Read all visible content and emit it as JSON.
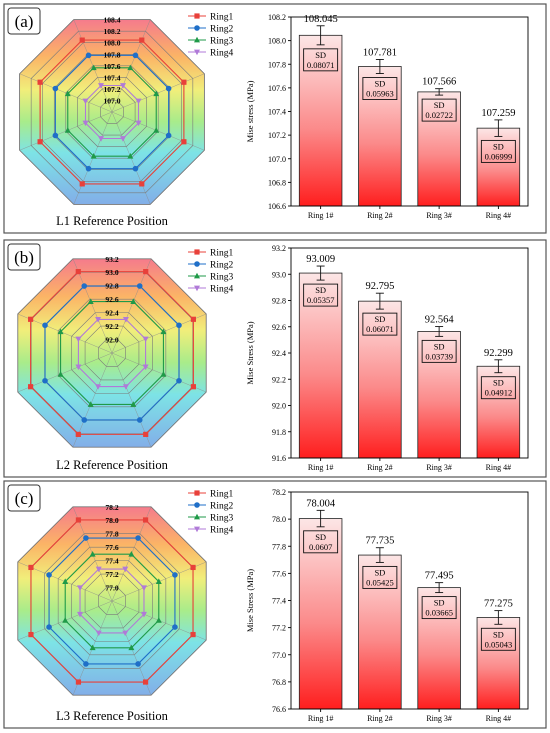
{
  "colors": {
    "ring1": "#e8403a",
    "ring2": "#1f6fc8",
    "ring3": "#1f9a48",
    "ring4": "#b07ad8",
    "bar_top": "#ff2020",
    "bar_bottom": "#fce6e6"
  },
  "legend": [
    "Ring1",
    "Ring2",
    "Ring3",
    "Ring4"
  ],
  "chart_data": [
    {
      "panel": "(a)",
      "radar": {
        "type": "radar",
        "title": "L1 Reference Position",
        "ring_labels": [
          "107.0",
          "107.2",
          "107.4",
          "107.6",
          "107.8",
          "108.0",
          "108.2",
          "108.4"
        ],
        "range": [
          106.8,
          108.4
        ],
        "series": [
          {
            "name": "Ring1",
            "value": 108.045
          },
          {
            "name": "Ring2",
            "value": 107.781
          },
          {
            "name": "Ring3",
            "value": 107.566
          },
          {
            "name": "Ring4",
            "value": 107.259
          }
        ]
      },
      "bar": {
        "type": "bar",
        "ylabel": "Mise stress (MPa)",
        "ylim": [
          106.6,
          108.2
        ],
        "yticks": [
          "106.6",
          "106.8",
          "107.0",
          "107.2",
          "107.4",
          "107.6",
          "107.8",
          "108.0",
          "108.2"
        ],
        "categories": [
          "Ring 1#",
          "Ring 2#",
          "Ring 3#",
          "Ring 4#"
        ],
        "values": [
          108.045,
          107.781,
          107.566,
          107.259
        ],
        "value_labels": [
          "108.045",
          "107.781",
          "107.566",
          "107.259"
        ],
        "sd_title": "SD",
        "sd": [
          "0.08071",
          "0.05963",
          "0.02722",
          "0.06999"
        ],
        "err": [
          0.08071,
          0.05963,
          0.02722,
          0.06999
        ]
      }
    },
    {
      "panel": "(b)",
      "radar": {
        "type": "radar",
        "title": "L2 Reference Position",
        "ring_labels": [
          "92.0",
          "92.2",
          "92.4",
          "92.6",
          "92.8",
          "93.0",
          "93.2"
        ],
        "range": [
          91.8,
          93.2
        ],
        "series": [
          {
            "name": "Ring1",
            "value": 93.009
          },
          {
            "name": "Ring2",
            "value": 92.795
          },
          {
            "name": "Ring3",
            "value": 92.564
          },
          {
            "name": "Ring4",
            "value": 92.299
          }
        ]
      },
      "bar": {
        "type": "bar",
        "ylabel": "Mise Stress (MPa)",
        "ylim": [
          91.6,
          93.2
        ],
        "yticks": [
          "91.6",
          "91.8",
          "92.0",
          "92.2",
          "92.4",
          "92.6",
          "92.8",
          "93.0",
          "93.2"
        ],
        "categories": [
          "Ring 1#",
          "Ring 2#",
          "Ring 3#",
          "Ring 4#"
        ],
        "values": [
          93.009,
          92.795,
          92.564,
          92.299
        ],
        "value_labels": [
          "93.009",
          "92.795",
          "92.564",
          "92.299"
        ],
        "sd_title": "SD",
        "sd": [
          "0.05357",
          "0.06071",
          "0.03739",
          "0.04912"
        ],
        "err": [
          0.05357,
          0.06071,
          0.03739,
          0.04912
        ]
      }
    },
    {
      "panel": "(c)",
      "radar": {
        "type": "radar",
        "title": "L3 Reference Position",
        "ring_labels": [
          "77.0",
          "77.2",
          "77.4",
          "77.6",
          "77.8",
          "78.0",
          "78.2"
        ],
        "range": [
          76.8,
          78.2
        ],
        "series": [
          {
            "name": "Ring1",
            "value": 78.004
          },
          {
            "name": "Ring2",
            "value": 77.735
          },
          {
            "name": "Ring3",
            "value": 77.495
          },
          {
            "name": "Ring4",
            "value": 77.275
          }
        ]
      },
      "bar": {
        "type": "bar",
        "ylabel": "Mise Stress (MPa)",
        "ylim": [
          76.6,
          78.2
        ],
        "yticks": [
          "76.6",
          "76.8",
          "77.0",
          "77.2",
          "77.4",
          "77.6",
          "77.8",
          "78.0",
          "78.2"
        ],
        "categories": [
          "Ring 1#",
          "Ring 2#",
          "Ring 3#",
          "Ring 4#"
        ],
        "values": [
          78.004,
          77.735,
          77.495,
          77.275
        ],
        "value_labels": [
          "78.004",
          "77.735",
          "77.495",
          "77.275"
        ],
        "sd_title": "SD",
        "sd": [
          "0.0607",
          "0.05425",
          "0.03665",
          "0.05043"
        ],
        "err": [
          0.0607,
          0.05425,
          0.03665,
          0.05043
        ]
      }
    }
  ]
}
